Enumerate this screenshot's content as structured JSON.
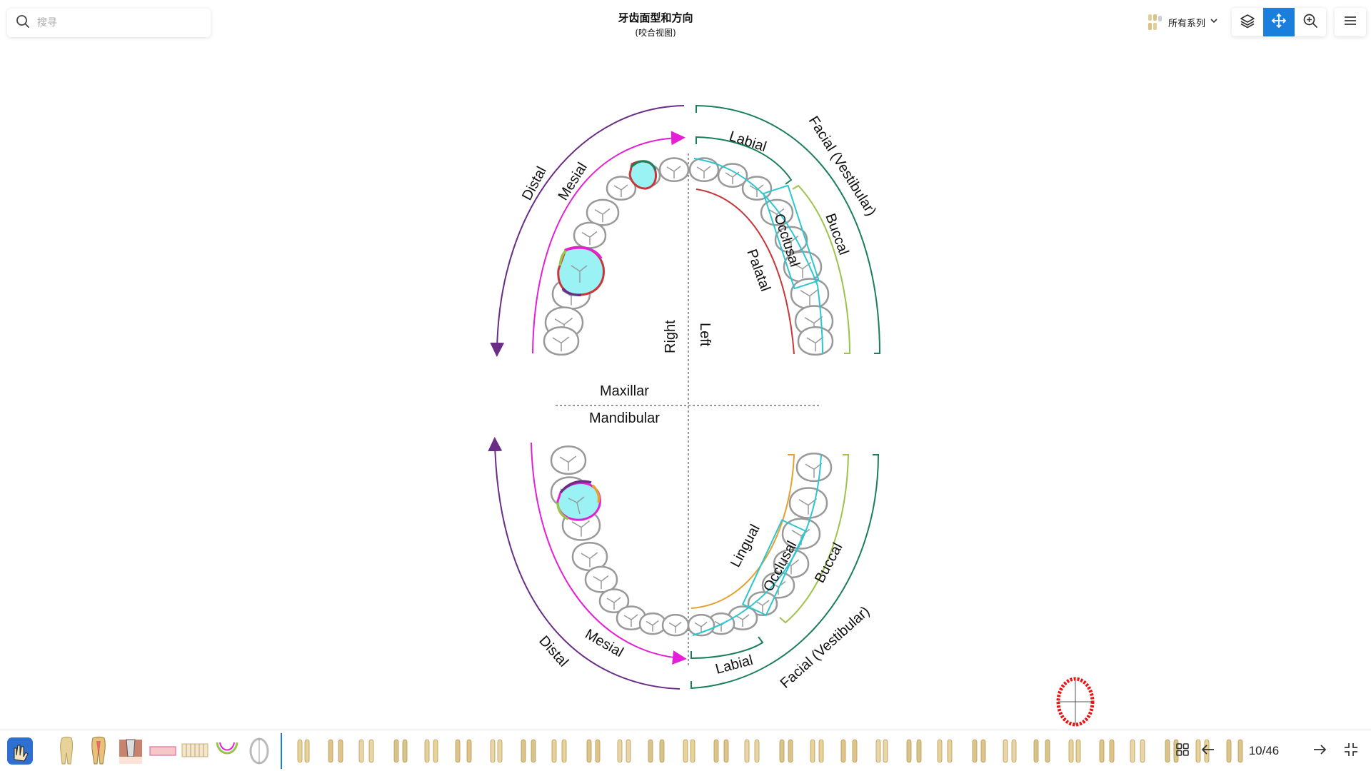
{
  "search": {
    "placeholder": "搜寻"
  },
  "header": {
    "title": "牙齿面型和方向",
    "subtitle": "(咬合视图)"
  },
  "series": {
    "label": "所有系列"
  },
  "toolbar": {
    "tools": [
      "layers-icon",
      "move-icon",
      "zoom-icon"
    ],
    "active": "move-icon",
    "menu": "menu-icon"
  },
  "diagram": {
    "labels": {
      "distal": "Distal",
      "mesial": "Mesial",
      "labial": "Labial",
      "facial": "Facial (Vestibular)",
      "buccal": "Buccal",
      "occlusal": "Occlusal",
      "palatal": "Palatal",
      "lingual": "Lingual",
      "right": "Right",
      "left": "Left",
      "maxillar": "Maxillar",
      "mandibular": "Mandibular"
    },
    "colors": {
      "distal": "#6a2d86",
      "mesial": "#e41fd6",
      "facial": "#1b7f5a",
      "labial": "#1b7f5a",
      "buccal": "#9cc44a",
      "occlusal": "#2cc6cf",
      "palatal": "#c8363a",
      "lingual": "#e5a02d",
      "highlight_fill": "#9bf2f4"
    }
  },
  "bottombar": {
    "pager": "10/46",
    "thumbnail_count": 38
  }
}
